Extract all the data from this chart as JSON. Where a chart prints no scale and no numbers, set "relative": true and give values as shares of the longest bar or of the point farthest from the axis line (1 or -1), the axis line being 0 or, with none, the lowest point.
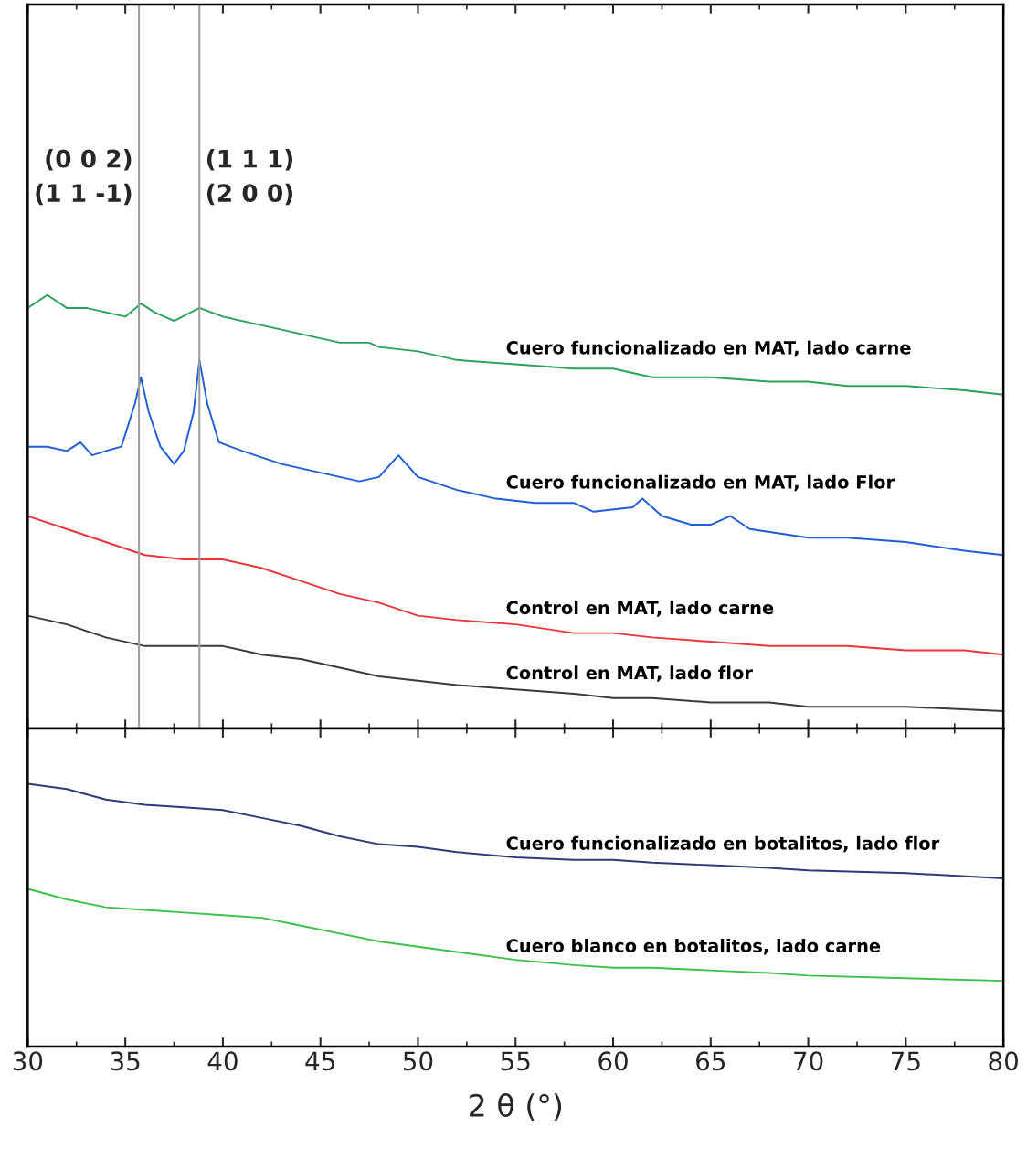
{
  "chart_data": [
    {
      "type": "line",
      "relative": true,
      "xlim": [
        30,
        80
      ],
      "xticks": [
        30,
        35,
        40,
        45,
        50,
        55,
        60,
        65,
        70,
        75,
        80
      ],
      "tick_labels": false,
      "grid": false,
      "legend": false,
      "ref_lines": [
        {
          "axis": "x",
          "value": 35.7,
          "color": "#a0a0a0"
        },
        {
          "axis": "x",
          "value": 38.8,
          "color": "#a0a0a0"
        }
      ],
      "annotations": [
        "(0 0 2)\n(1 1 -1)",
        "(1 1 1)\n(2 0 0)"
      ],
      "series": [
        {
          "name": "Cuero funcionalizado en MAT, lado carne",
          "color": "#2aa35a",
          "x": [
            30,
            31,
            32,
            33,
            34,
            35,
            35.8,
            36.5,
            37.5,
            38.8,
            40,
            42,
            44,
            46,
            47.5,
            48,
            50,
            52,
            55,
            58,
            60,
            62,
            65,
            68,
            70,
            72,
            75,
            78,
            80
          ],
          "values": [
            0.97,
            1.0,
            0.97,
            0.97,
            0.96,
            0.95,
            0.98,
            0.96,
            0.94,
            0.97,
            0.95,
            0.93,
            0.91,
            0.89,
            0.89,
            0.88,
            0.87,
            0.85,
            0.84,
            0.83,
            0.83,
            0.81,
            0.81,
            0.8,
            0.8,
            0.79,
            0.79,
            0.78,
            0.77
          ]
        },
        {
          "name": "Cuero funcionalizado en MAT, lado Flor",
          "color": "#1f5fd6",
          "x": [
            30,
            31,
            32,
            32.7,
            33.3,
            34,
            34.8,
            35.5,
            35.8,
            36.2,
            36.8,
            37.5,
            38,
            38.5,
            38.8,
            39.2,
            39.8,
            41,
            43,
            45,
            47,
            48,
            49,
            50,
            52,
            54,
            56,
            58,
            59,
            61,
            61.5,
            62.5,
            64,
            65,
            66,
            67,
            70,
            72,
            75,
            78,
            80
          ],
          "values": [
            0.65,
            0.65,
            0.64,
            0.66,
            0.63,
            0.64,
            0.65,
            0.75,
            0.81,
            0.73,
            0.65,
            0.61,
            0.64,
            0.73,
            0.85,
            0.75,
            0.66,
            0.64,
            0.61,
            0.59,
            0.57,
            0.58,
            0.63,
            0.58,
            0.55,
            0.53,
            0.52,
            0.52,
            0.5,
            0.51,
            0.53,
            0.49,
            0.47,
            0.47,
            0.49,
            0.46,
            0.44,
            0.44,
            0.43,
            0.41,
            0.4
          ]
        },
        {
          "name": "Control en MAT, lado carne",
          "color": "#e8363a",
          "x": [
            30,
            32,
            34,
            36,
            38,
            40,
            42,
            44,
            46,
            48,
            50,
            52,
            55,
            58,
            60,
            62,
            65,
            68,
            70,
            72,
            75,
            78,
            80
          ],
          "values": [
            0.49,
            0.46,
            0.43,
            0.4,
            0.39,
            0.39,
            0.37,
            0.34,
            0.31,
            0.29,
            0.26,
            0.25,
            0.24,
            0.22,
            0.22,
            0.21,
            0.2,
            0.19,
            0.19,
            0.19,
            0.18,
            0.18,
            0.17
          ]
        },
        {
          "name": "Control en MAT, lado flor",
          "color": "#3a3a3a",
          "x": [
            30,
            32,
            34,
            36,
            38,
            40,
            42,
            44,
            46,
            48,
            50,
            52,
            55,
            58,
            60,
            62,
            65,
            68,
            70,
            75,
            80
          ],
          "values": [
            0.26,
            0.24,
            0.21,
            0.19,
            0.19,
            0.19,
            0.17,
            0.16,
            0.14,
            0.12,
            0.11,
            0.1,
            0.09,
            0.08,
            0.07,
            0.07,
            0.06,
            0.06,
            0.05,
            0.05,
            0.04
          ]
        }
      ]
    },
    {
      "type": "line",
      "relative": true,
      "xlim": [
        30,
        80
      ],
      "xticks": [
        30,
        35,
        40,
        45,
        50,
        55,
        60,
        65,
        70,
        75,
        80
      ],
      "tick_labels": "x",
      "xlabel": "2 θ (°)",
      "grid": false,
      "legend": false,
      "series": [
        {
          "name": "Cuero funcionalizado en botalitos, lado flor",
          "color": "#2e3a7a",
          "x": [
            30,
            32,
            34,
            36,
            38,
            40,
            42,
            44,
            46,
            48,
            50,
            52,
            55,
            58,
            60,
            62,
            65,
            68,
            70,
            75,
            80
          ],
          "values": [
            1.0,
            0.98,
            0.94,
            0.92,
            0.91,
            0.9,
            0.87,
            0.84,
            0.8,
            0.77,
            0.76,
            0.74,
            0.72,
            0.71,
            0.71,
            0.7,
            0.69,
            0.68,
            0.67,
            0.66,
            0.64
          ]
        },
        {
          "name": "Cuero blanco en botalitos, lado carne",
          "color": "#3cc24a",
          "x": [
            30,
            32,
            34,
            36,
            38,
            40,
            42,
            44,
            46,
            48,
            50,
            52,
            55,
            58,
            60,
            62,
            65,
            68,
            70,
            75,
            80
          ],
          "values": [
            0.6,
            0.56,
            0.53,
            0.52,
            0.51,
            0.5,
            0.49,
            0.46,
            0.43,
            0.4,
            0.38,
            0.36,
            0.33,
            0.31,
            0.3,
            0.3,
            0.29,
            0.28,
            0.27,
            0.26,
            0.25
          ]
        }
      ]
    }
  ]
}
